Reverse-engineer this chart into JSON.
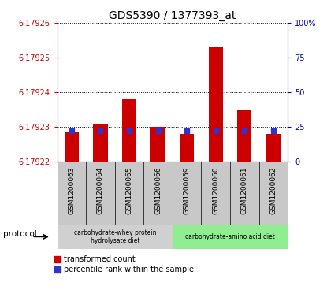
{
  "title": "GDS5390 / 1377393_at",
  "samples": [
    "GSM1200063",
    "GSM1200064",
    "GSM1200065",
    "GSM1200066",
    "GSM1200059",
    "GSM1200060",
    "GSM1200061",
    "GSM1200062"
  ],
  "transformed_counts": [
    6.1792285,
    6.179231,
    6.179238,
    6.17923,
    6.179228,
    6.179253,
    6.179235,
    6.179228
  ],
  "percentile_ranks": [
    22,
    22,
    22,
    22,
    22,
    22,
    22,
    22
  ],
  "ylim_left": [
    6.17922,
    6.17926
  ],
  "ylim_right": [
    0,
    100
  ],
  "yticks_left": [
    6.17922,
    6.17923,
    6.17924,
    6.17925,
    6.17926
  ],
  "yticks_right": [
    0,
    25,
    50,
    75,
    100
  ],
  "bar_color_red": "#cc0000",
  "bar_color_blue": "#3333cc",
  "bar_width": 0.5,
  "blue_marker_size": 5,
  "group1_label": "carbohydrate-whey protein\nhydrolysate diet",
  "group2_label": "carbohydrate-amino acid diet",
  "group1_indices": [
    0,
    1,
    2,
    3
  ],
  "group2_indices": [
    4,
    5,
    6,
    7
  ],
  "group1_color": "#d0d0d0",
  "group2_color": "#90ee90",
  "protocol_label": "protocol",
  "legend_red_label": "transformed count",
  "legend_blue_label": "percentile rank within the sample",
  "tick_color_left": "#cc0000",
  "tick_color_right": "#0000bb",
  "xtick_area_color": "#c8c8c8",
  "plot_bg_color": "#ffffff",
  "border_color": "#000000"
}
